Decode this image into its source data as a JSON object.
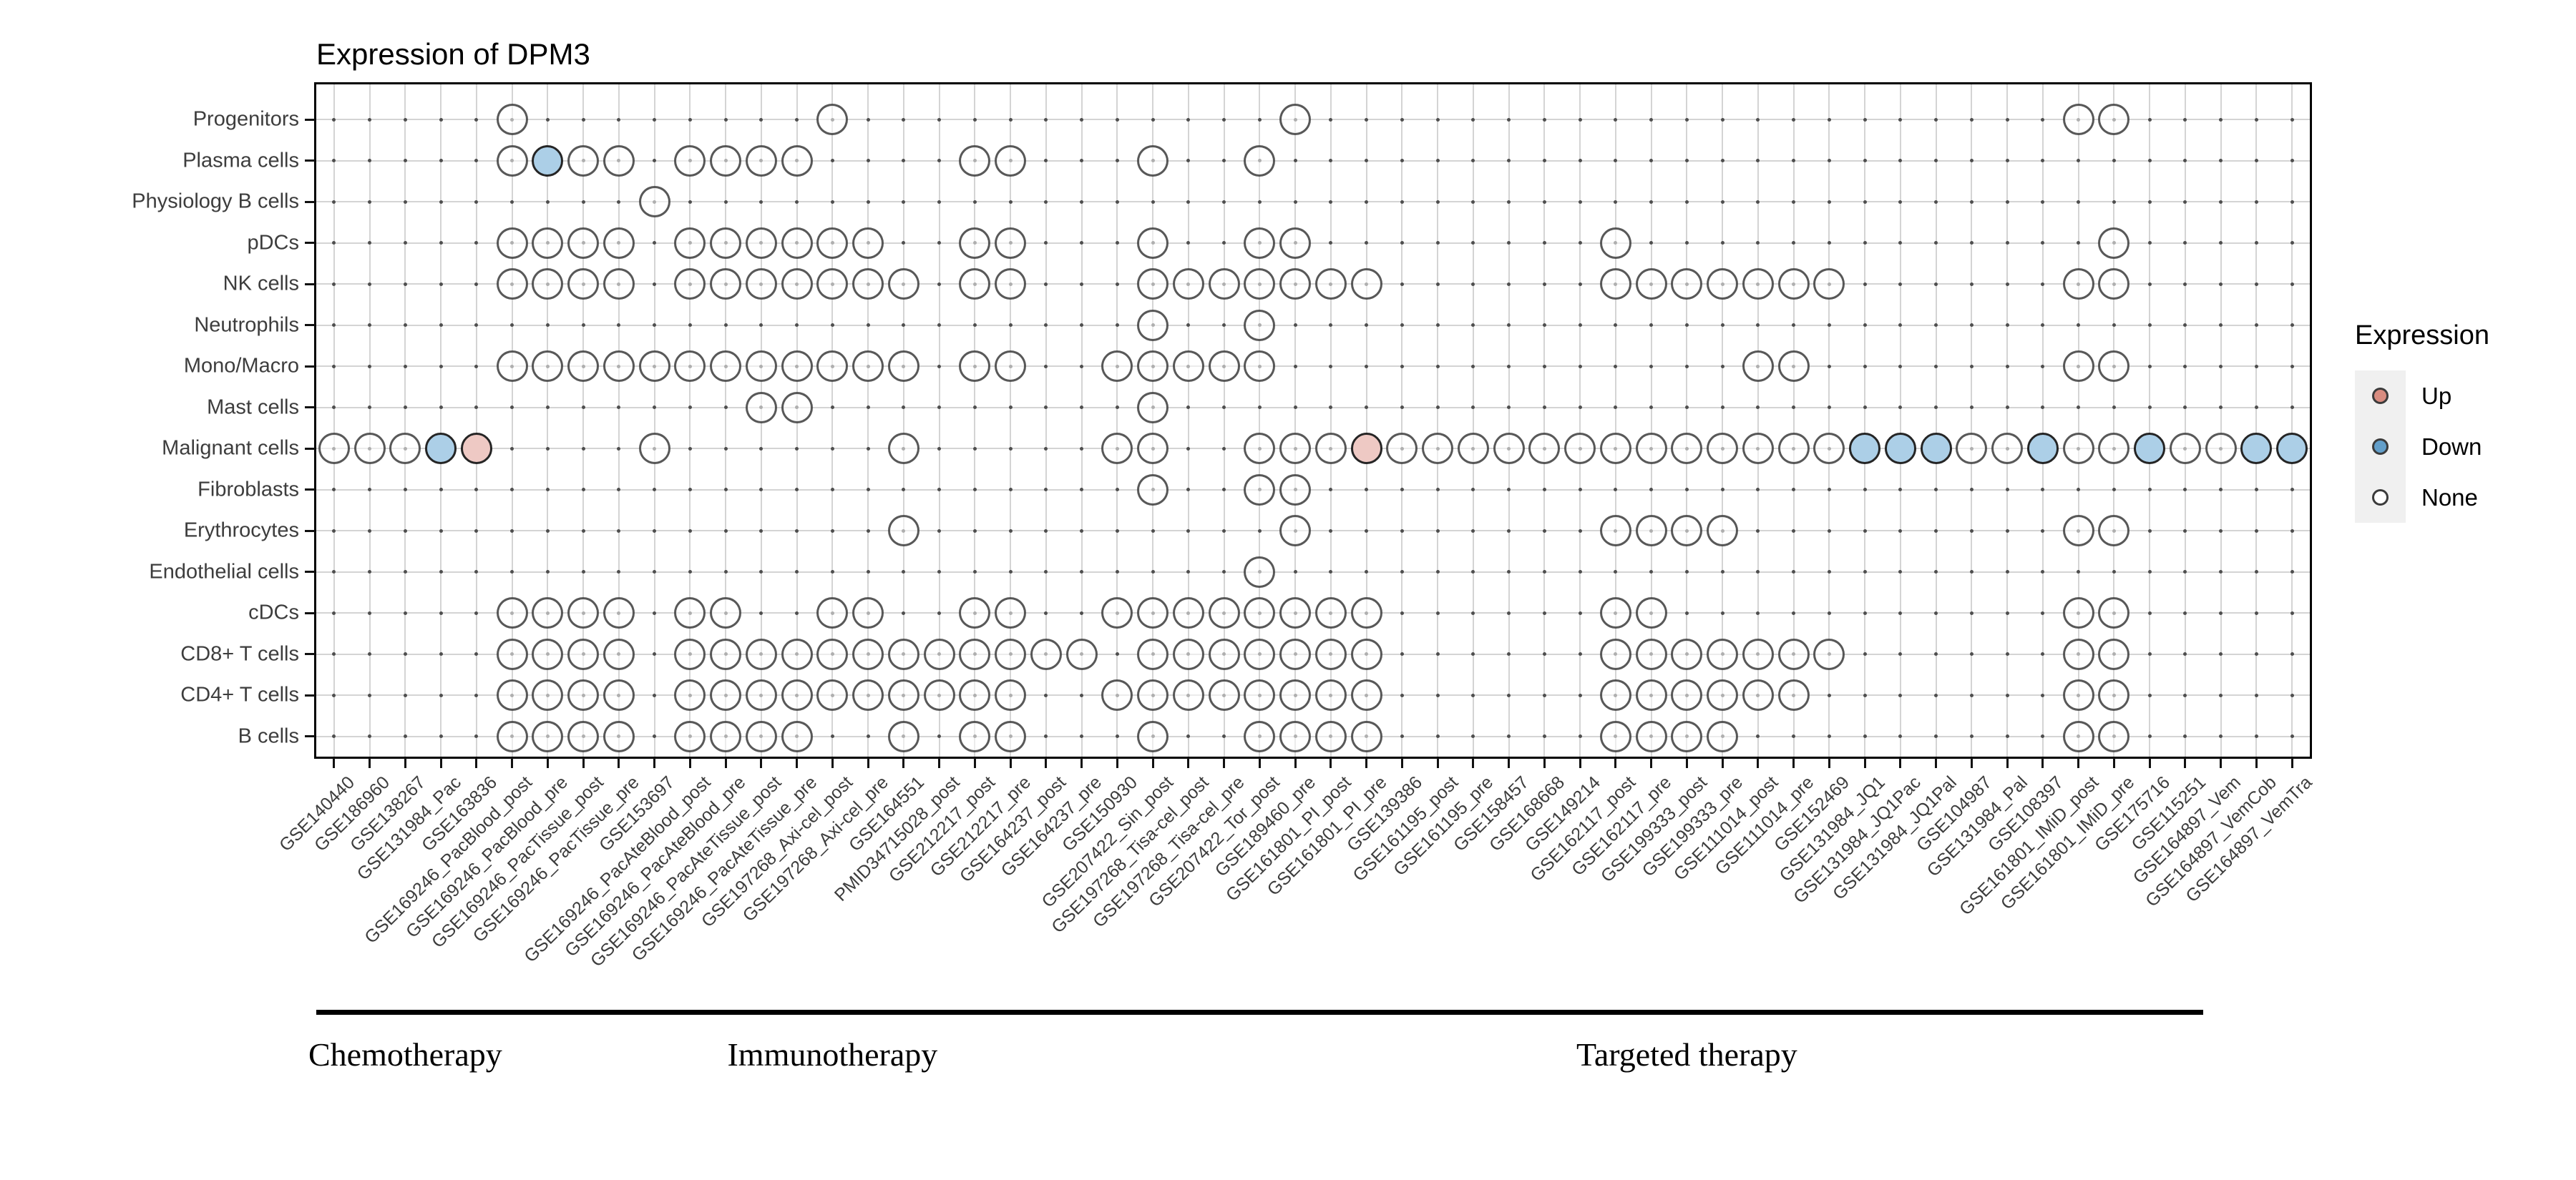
{
  "title": "Expression of DPM3",
  "legend": {
    "title": "Expression",
    "items": [
      {
        "label": "Up",
        "color": "#d88c80"
      },
      {
        "label": "Down",
        "color": "#639fca"
      },
      {
        "label": "None",
        "color": "#ffffff"
      }
    ]
  },
  "chart_data": {
    "type": "dot-matrix",
    "title": "Expression of DPM3",
    "ylabel": "",
    "xlabel": "",
    "grid": true,
    "legend_position": "right",
    "rows": [
      "Progenitors",
      "Plasma cells",
      "Physiology B cells",
      "pDCs",
      "NK cells",
      "Neutrophils",
      "Mono/Macro",
      "Mast cells",
      "Malignant cells",
      "Fibroblasts",
      "Erythrocytes",
      "Endothelial cells",
      "cDCs",
      "CD8+ T cells",
      "CD4+ T cells",
      "B cells"
    ],
    "columns": [
      "GSE140440",
      "GSE186960",
      "GSE138267",
      "GSE131984_Pac",
      "GSE163836",
      "GSE169246_PacBlood_post",
      "GSE169246_PacBlood_pre",
      "GSE169246_PacTissue_post",
      "GSE169246_PacTissue_pre",
      "GSE153697",
      "GSE169246_PacAteBlood_post",
      "GSE169246_PacAteBlood_pre",
      "GSE169246_PacAteTissue_post",
      "GSE169246_PacAteTissue_pre",
      "GSE197268_Axi-cel_post",
      "GSE197268_Axi-cel_pre",
      "GSE164551",
      "PMID34715028_post",
      "GSE212217_post",
      "GSE212217_pre",
      "GSE164237_post",
      "GSE164237_pre",
      "GSE150930",
      "GSE207422_Sin_post",
      "GSE197268_Tisa-cel_post",
      "GSE197268_Tisa-cel_pre",
      "GSE207422_Tor_post",
      "GSE189460_pre",
      "GSE161801_PI_post",
      "GSE161801_PI_pre",
      "GSE139386",
      "GSE161195_post",
      "GSE161195_pre",
      "GSE158457",
      "GSE168668",
      "GSE149214",
      "GSE162117_post",
      "GSE162117_pre",
      "GSE199333_post",
      "GSE199333_pre",
      "GSE111014_post",
      "GSE111014_pre",
      "GSE152469",
      "GSE131984_JQ1",
      "GSE131984_JQ1Pac",
      "GSE131984_JQ1Pal",
      "GSE104987",
      "GSE131984_Pal",
      "GSE108397",
      "GSE161801_IMiD_post",
      "GSE161801_IMiD_pre",
      "GSE175716",
      "GSE115251",
      "GSE164897_Vem",
      "GSE164897_VemCob",
      "GSE164897_VemTra"
    ],
    "groups": [
      {
        "label": "Chemotherapy",
        "from": 1,
        "to": 5
      },
      {
        "label": "Immunotherapy",
        "from": 6,
        "to": 24
      },
      {
        "label": "Targeted therapy",
        "from": 25,
        "to": 53
      }
    ],
    "cells": [
      {
        "row": "Progenitors",
        "none": [
          6,
          15,
          28,
          50,
          51
        ],
        "down": [],
        "up": []
      },
      {
        "row": "Plasma cells",
        "none": [
          6,
          8,
          9,
          11,
          12,
          13,
          14,
          19,
          20,
          24,
          27
        ],
        "down": [
          7
        ],
        "up": []
      },
      {
        "row": "Physiology B cells",
        "none": [
          10
        ],
        "down": [],
        "up": []
      },
      {
        "row": "pDCs",
        "none": [
          6,
          7,
          8,
          9,
          11,
          12,
          13,
          14,
          15,
          16,
          19,
          20,
          24,
          27,
          28,
          37,
          51
        ],
        "down": [],
        "up": []
      },
      {
        "row": "NK cells",
        "none": [
          6,
          7,
          8,
          9,
          11,
          12,
          13,
          14,
          15,
          16,
          17,
          19,
          20,
          24,
          25,
          26,
          27,
          28,
          29,
          30,
          37,
          38,
          39,
          40,
          41,
          42,
          43,
          50,
          51
        ],
        "down": [],
        "up": []
      },
      {
        "row": "Neutrophils",
        "none": [
          24,
          27
        ],
        "down": [],
        "up": []
      },
      {
        "row": "Mono/Macro",
        "none": [
          6,
          7,
          8,
          9,
          10,
          11,
          12,
          13,
          14,
          15,
          16,
          17,
          19,
          20,
          23,
          24,
          25,
          26,
          27,
          41,
          42,
          50,
          51
        ],
        "down": [],
        "up": []
      },
      {
        "row": "Mast cells",
        "none": [
          13,
          14,
          24
        ],
        "down": [],
        "up": []
      },
      {
        "row": "Malignant cells",
        "none": [
          1,
          2,
          3,
          10,
          17,
          23,
          24,
          27,
          28,
          29,
          31,
          32,
          33,
          34,
          35,
          36,
          37,
          38,
          39,
          40,
          41,
          42,
          43,
          47,
          48,
          50,
          51,
          53,
          54
        ],
        "down": [
          4,
          44,
          45,
          46,
          49,
          52,
          55,
          56
        ],
        "up": [
          5,
          30
        ]
      },
      {
        "row": "Fibroblasts",
        "none": [
          24,
          27,
          28
        ],
        "down": [],
        "up": []
      },
      {
        "row": "Erythrocytes",
        "none": [
          17,
          28,
          37,
          38,
          39,
          40,
          50,
          51
        ],
        "down": [],
        "up": []
      },
      {
        "row": "Endothelial cells",
        "none": [
          27
        ],
        "down": [],
        "up": []
      },
      {
        "row": "cDCs",
        "none": [
          6,
          7,
          8,
          9,
          11,
          12,
          15,
          16,
          19,
          20,
          23,
          24,
          25,
          26,
          27,
          28,
          29,
          30,
          37,
          38,
          50,
          51
        ],
        "down": [],
        "up": []
      },
      {
        "row": "CD8+ T cells",
        "none": [
          6,
          7,
          8,
          9,
          11,
          12,
          13,
          14,
          15,
          16,
          17,
          18,
          19,
          20,
          21,
          22,
          24,
          25,
          26,
          27,
          28,
          29,
          30,
          37,
          38,
          39,
          40,
          41,
          42,
          43,
          50,
          51
        ],
        "down": [],
        "up": []
      },
      {
        "row": "CD4+ T cells",
        "none": [
          6,
          7,
          8,
          9,
          11,
          12,
          13,
          14,
          15,
          16,
          17,
          18,
          19,
          20,
          23,
          24,
          25,
          26,
          27,
          28,
          29,
          30,
          37,
          38,
          39,
          40,
          41,
          42,
          50,
          51
        ],
        "down": [],
        "up": []
      },
      {
        "row": "B cells",
        "none": [
          6,
          7,
          8,
          9,
          11,
          12,
          13,
          14,
          17,
          19,
          20,
          24,
          27,
          28,
          29,
          30,
          37,
          38,
          39,
          40,
          50,
          51
        ],
        "down": [],
        "up": []
      }
    ],
    "colors": {
      "up_fill": "#eec9c4",
      "down_fill": "#accfe7",
      "none_fill": "#ffffff",
      "outline": "#464646",
      "grid": "#d4d4d4"
    }
  }
}
